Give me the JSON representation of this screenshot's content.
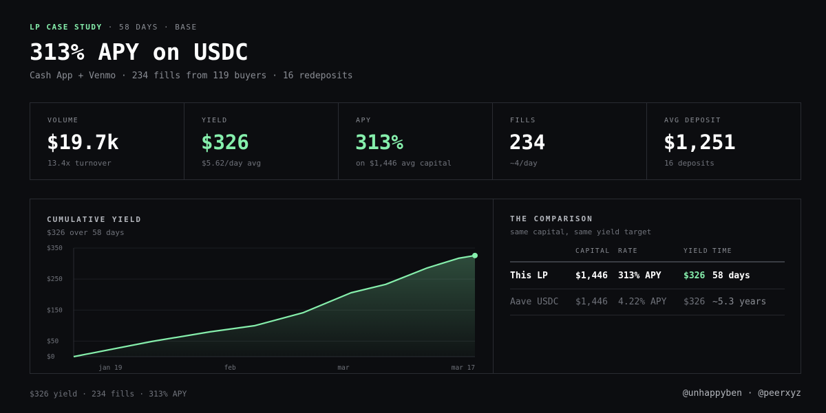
{
  "header": {
    "eyebrow": "LP CASE STUDY",
    "meta": "· 58 DAYS · BASE",
    "title": "313% APY on USDC",
    "subtitle": "Cash App + Venmo · 234 fills from 119 buyers · 16 redeposits"
  },
  "stats": [
    {
      "label": "VOLUME",
      "value": "$19.7k",
      "note": "13.4x turnover",
      "color": "#ffffff"
    },
    {
      "label": "YIELD",
      "value": "$326",
      "note": "$5.62/day avg",
      "color": "#86efac"
    },
    {
      "label": "APY",
      "value": "313%",
      "note": "on $1,446 avg capital",
      "color": "#86efac"
    },
    {
      "label": "FILLS",
      "value": "234",
      "note": "~4/day",
      "color": "#ffffff"
    },
    {
      "label": "AVG DEPOSIT",
      "value": "$1,251",
      "note": "16 deposits",
      "color": "#ffffff"
    }
  ],
  "chart_data": {
    "type": "line",
    "title": "CUMULATIVE YIELD",
    "subtitle": "$326 over 58 days",
    "x": [
      0,
      11.3,
      19.7,
      26.2,
      33.2,
      40.1,
      45.1,
      51.1,
      55.6,
      58
    ],
    "series": [
      {
        "color": "#86efac",
        "values": [
          0,
          49,
          80,
          100,
          142,
          206,
          233,
          286,
          317,
          326
        ]
      }
    ],
    "xlim": [
      0,
      58
    ],
    "ylim": [
      0,
      350
    ],
    "yticks": [
      {
        "value": 0,
        "label": "$0"
      },
      {
        "value": 50,
        "label": "$50"
      },
      {
        "value": 150,
        "label": "$150"
      },
      {
        "value": 250,
        "label": "$250"
      },
      {
        "value": 350,
        "label": "$350"
      }
    ],
    "xticks": [
      {
        "value": 5.3,
        "label": "jan 19"
      },
      {
        "value": 22.6,
        "label": "feb"
      },
      {
        "value": 39,
        "label": "mar"
      },
      {
        "value": 56.3,
        "label": "mar 17"
      }
    ],
    "grid": true
  },
  "comparison": {
    "title": "THE COMPARISON",
    "subtitle": "same capital, same yield target",
    "columns": [
      "CAPITAL",
      "RATE",
      "YIELD",
      "TIME"
    ],
    "rows": [
      [
        "This LP",
        "$1,446",
        "313% APY",
        "$326",
        "58 days"
      ],
      [
        "Aave USDC",
        "$1,446",
        "4.22% APY",
        "$326",
        "~5.3 years"
      ]
    ]
  },
  "footer": {
    "left": "$326 yield · 234 fills · 313% APY",
    "right": "@unhappyben · @peerxyz"
  }
}
